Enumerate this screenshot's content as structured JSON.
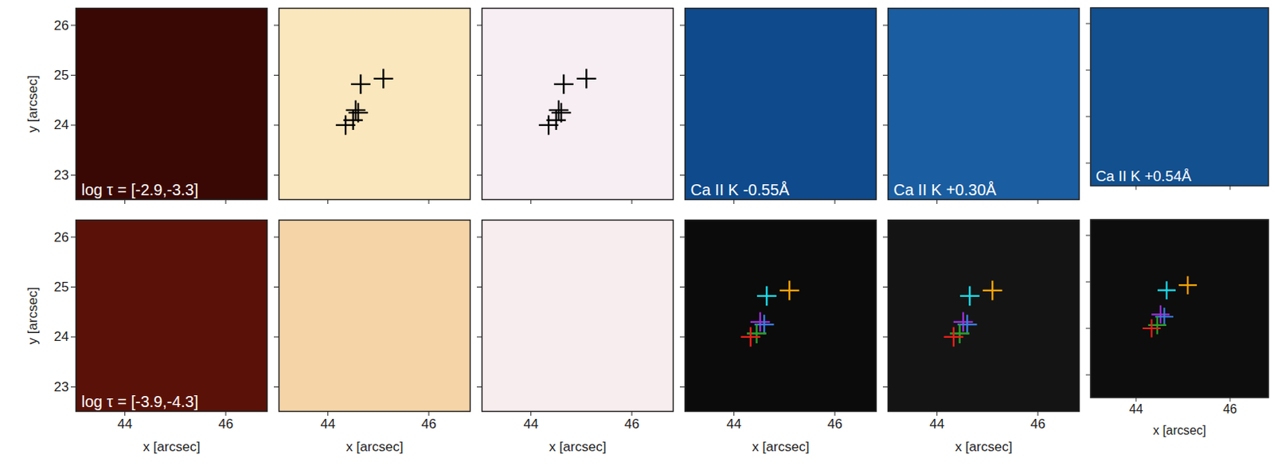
{
  "chart_data": [
    {
      "type": "scatter",
      "color": "#3a0804",
      "xlim": [
        43.03,
        46.82
      ],
      "ylim": [
        22.51,
        26.34
      ],
      "xticks": [
        44,
        46
      ],
      "yticks": [
        23,
        24,
        25,
        26
      ],
      "tick_labels": "y",
      "ylabel": "y [arcsec]",
      "annotation": "log τ = [-2.9,-3.3]"
    },
    {
      "type": "scatter",
      "color": "#fbe7bd",
      "xlim": [
        43.03,
        46.82
      ],
      "ylim": [
        22.51,
        26.34
      ],
      "xticks": [
        44,
        46
      ],
      "yticks": [
        23,
        24,
        25,
        26
      ],
      "tick_labels": false,
      "series": [
        {
          "color": "#000000",
          "marker": "plus",
          "x": [
            44.65,
            45.1,
            44.55,
            44.6,
            44.5,
            44.35
          ],
          "y": [
            24.82,
            24.93,
            24.3,
            24.25,
            24.1,
            24.0
          ]
        }
      ]
    },
    {
      "type": "scatter",
      "color": "#f6eef2",
      "xlim": [
        43.03,
        46.82
      ],
      "ylim": [
        22.51,
        26.34
      ],
      "xticks": [
        44,
        46
      ],
      "yticks": [
        23,
        24,
        25,
        26
      ],
      "tick_labels": false,
      "series": [
        {
          "color": "#000000",
          "marker": "plus",
          "x": [
            44.65,
            45.1,
            44.55,
            44.6,
            44.5,
            44.35
          ],
          "y": [
            24.82,
            24.93,
            24.3,
            24.25,
            24.1,
            24.0
          ]
        }
      ]
    },
    {
      "type": "scatter",
      "color": "#0e4a8c",
      "xlim": [
        43.03,
        46.82
      ],
      "ylim": [
        22.51,
        26.34
      ],
      "xticks": [
        44,
        46
      ],
      "yticks": [
        23,
        24,
        25,
        26
      ],
      "tick_labels": false,
      "annotation": "Ca II K -0.55Å"
    },
    {
      "type": "scatter",
      "color": "#1a5da0",
      "xlim": [
        43.03,
        46.82
      ],
      "ylim": [
        22.51,
        26.34
      ],
      "xticks": [
        44,
        46
      ],
      "yticks": [
        23,
        24,
        25,
        26
      ],
      "tick_labels": false,
      "annotation": "Ca II K +0.30Å"
    },
    {
      "type": "scatter",
      "color": "#12508f",
      "xlim": [
        43.03,
        46.82
      ],
      "ylim": [
        22.51,
        26.34
      ],
      "xticks": [
        44,
        46
      ],
      "yticks": [
        23,
        24,
        25,
        26
      ],
      "tick_labels": false,
      "annotation": "Ca II K +0.54Å"
    },
    {
      "type": "scatter",
      "color": "#5a1208",
      "xlim": [
        43.03,
        46.82
      ],
      "ylim": [
        22.51,
        26.34
      ],
      "xticks": [
        44,
        46
      ],
      "yticks": [
        23,
        24,
        25,
        26
      ],
      "tick_labels": true,
      "xlabel": "x [arcsec]",
      "ylabel": "y [arcsec]",
      "annotation": "log τ = [-3.9,-4.3]"
    },
    {
      "type": "scatter",
      "color": "#f5d5a8",
      "xlim": [
        43.03,
        46.82
      ],
      "ylim": [
        22.51,
        26.34
      ],
      "xticks": [
        44,
        46
      ],
      "yticks": [
        23,
        24,
        25,
        26
      ],
      "tick_labels": "x",
      "xlabel": "x [arcsec]"
    },
    {
      "type": "scatter",
      "color": "#f7ecee",
      "xlim": [
        43.03,
        46.82
      ],
      "ylim": [
        22.51,
        26.34
      ],
      "xticks": [
        44,
        46
      ],
      "yticks": [
        23,
        24,
        25,
        26
      ],
      "tick_labels": "x",
      "xlabel": "x [arcsec]"
    },
    {
      "type": "scatter",
      "color": "#0b0b0b",
      "xlim": [
        43.03,
        46.82
      ],
      "ylim": [
        22.51,
        26.34
      ],
      "xticks": [
        44,
        46
      ],
      "yticks": [
        23,
        24,
        25,
        26
      ],
      "tick_labels": "x",
      "xlabel": "x [arcsec]",
      "series": [
        {
          "marker": "plus",
          "colors": [
            "#18e0f0",
            "#ffa500",
            "#9b30d9",
            "#3a7be0",
            "#2ca02c",
            "#e8201a"
          ],
          "x": [
            44.65,
            45.1,
            44.52,
            44.6,
            44.45,
            44.33
          ],
          "y": [
            24.82,
            24.93,
            24.3,
            24.25,
            24.07,
            24.0
          ]
        }
      ]
    },
    {
      "type": "scatter",
      "color": "#141414",
      "xlim": [
        43.03,
        46.82
      ],
      "ylim": [
        22.51,
        26.34
      ],
      "xticks": [
        44,
        46
      ],
      "yticks": [
        23,
        24,
        25,
        26
      ],
      "tick_labels": "x",
      "xlabel": "x [arcsec]",
      "series": [
        {
          "marker": "plus",
          "colors": [
            "#18e0f0",
            "#ffa500",
            "#9b30d9",
            "#3a7be0",
            "#2ca02c",
            "#e8201a"
          ],
          "x": [
            44.65,
            45.1,
            44.52,
            44.6,
            44.45,
            44.33
          ],
          "y": [
            24.82,
            24.93,
            24.3,
            24.25,
            24.07,
            24.0
          ]
        }
      ]
    },
    {
      "type": "scatter",
      "color": "#0d0d0d",
      "xlim": [
        43.03,
        46.82
      ],
      "ylim": [
        22.51,
        26.34
      ],
      "xticks": [
        44,
        46
      ],
      "yticks": [
        23,
        24,
        25,
        26
      ],
      "tick_labels": "x",
      "xlabel": "x [arcsec]",
      "series": [
        {
          "marker": "plus",
          "colors": [
            "#18e0f0",
            "#ffa500",
            "#9b30d9",
            "#3a7be0",
            "#2ca02c",
            "#e8201a"
          ],
          "x": [
            44.65,
            45.1,
            44.52,
            44.6,
            44.45,
            44.33
          ],
          "y": [
            24.82,
            24.93,
            24.3,
            24.25,
            24.07,
            24.0
          ]
        }
      ]
    }
  ]
}
